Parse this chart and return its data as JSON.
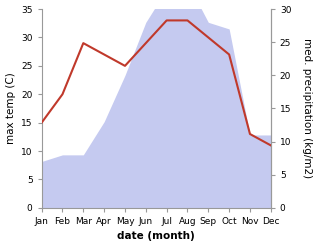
{
  "months": [
    "Jan",
    "Feb",
    "Mar",
    "Apr",
    "May",
    "Jun",
    "Jul",
    "Aug",
    "Sep",
    "Oct",
    "Nov",
    "Dec"
  ],
  "temperature": [
    15,
    20,
    29,
    27,
    25,
    29,
    33,
    33,
    30,
    27,
    13,
    11
  ],
  "precipitation": [
    7,
    8,
    8,
    13,
    20,
    28,
    33,
    34,
    28,
    27,
    11,
    11
  ],
  "temp_color": "#c0392b",
  "precip_fill_color": "#c5caf0",
  "left_ylabel": "max temp (C)",
  "right_ylabel": "med. precipitation (kg/m2)",
  "xlabel": "date (month)",
  "ylim_left": [
    0,
    35
  ],
  "ylim_right": [
    0,
    30
  ],
  "left_yticks": [
    0,
    5,
    10,
    15,
    20,
    25,
    30,
    35
  ],
  "right_yticks": [
    0,
    5,
    10,
    15,
    20,
    25,
    30
  ],
  "background_color": "#ffffff",
  "spine_color": "#999999",
  "tick_label_fontsize": 6.5,
  "axis_label_fontsize": 7.5
}
